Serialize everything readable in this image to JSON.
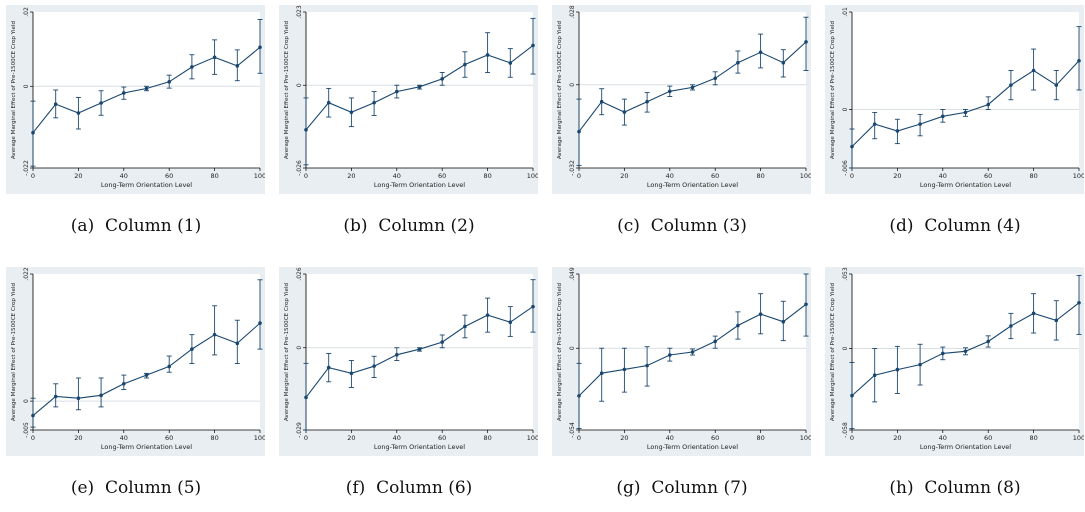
{
  "colors": {
    "series": "#1a476f",
    "panel_bg": "#e8eef1",
    "plot_bg": "#ffffff",
    "zero_line": "#dadfe2"
  },
  "x_ticks": [
    0,
    20,
    40,
    60,
    80,
    100
  ],
  "chart_data": [
    {
      "type": "line",
      "caption_tag": "(a)",
      "caption_text": "Column (1)",
      "xlabel": "Long-Term Orientation Level",
      "ylabel": "Average Marginal Effect of Pre-1500CE Crop Yield",
      "xlim": [
        0,
        100
      ],
      "ylim": [
        -0.022,
        0.02
      ],
      "y_ticks": [
        "-.022",
        "0",
        ".02"
      ],
      "x": [
        0,
        10,
        20,
        30,
        40,
        50,
        60,
        70,
        80,
        90,
        100
      ],
      "y": [
        -0.0125,
        -0.0048,
        -0.0072,
        -0.0045,
        -0.0018,
        -0.0006,
        0.0012,
        0.0052,
        0.0078,
        0.0055,
        0.0105
      ],
      "ci_low": [
        -0.0215,
        -0.0085,
        -0.0115,
        -0.0078,
        -0.0035,
        -0.0012,
        -0.0005,
        0.002,
        0.0032,
        0.0015,
        0.0035
      ],
      "ci_high": [
        -0.004,
        -0.001,
        -0.003,
        -0.0012,
        -0.0002,
        0,
        0.003,
        0.0085,
        0.0125,
        0.0098,
        0.018
      ]
    },
    {
      "type": "line",
      "caption_tag": "(b)",
      "caption_text": "Column (2)",
      "xlabel": "Long-Term Orientation Level",
      "ylabel": "Average Marginal Effect of Pre-1500CE Crop Yield",
      "xlim": [
        0,
        100
      ],
      "ylim": [
        -0.026,
        0.023
      ],
      "y_ticks": [
        "-.026",
        "0",
        ".023"
      ],
      "x": [
        0,
        10,
        20,
        30,
        40,
        50,
        60,
        70,
        80,
        90,
        100
      ],
      "y": [
        -0.014,
        -0.0055,
        -0.0085,
        -0.0055,
        -0.002,
        -0.0005,
        0.002,
        0.0065,
        0.0095,
        0.007,
        0.0125
      ],
      "ci_low": [
        -0.025,
        -0.01,
        -0.013,
        -0.0095,
        -0.004,
        -0.0012,
        0,
        0.0025,
        0.004,
        0.0025,
        0.0035
      ],
      "ci_high": [
        -0.004,
        -0.001,
        -0.004,
        -0.002,
        0,
        0,
        0.004,
        0.0105,
        0.0165,
        0.0115,
        0.021
      ]
    },
    {
      "type": "line",
      "caption_tag": "(c)",
      "caption_text": "Column (3)",
      "xlabel": "Long-Term Orientation Level",
      "ylabel": "Average Marginal Effect of Pre-1500CE Crop Yield",
      "xlim": [
        0,
        100
      ],
      "ylim": [
        -0.032,
        0.028
      ],
      "y_ticks": [
        "-.032",
        "0",
        ".028"
      ],
      "x": [
        0,
        10,
        20,
        30,
        40,
        50,
        60,
        70,
        80,
        90,
        100
      ],
      "y": [
        -0.018,
        -0.0065,
        -0.0105,
        -0.0065,
        -0.0025,
        -0.001,
        0.0025,
        0.0085,
        0.0125,
        0.0085,
        0.0165
      ],
      "ci_low": [
        -0.031,
        -0.0115,
        -0.0155,
        -0.0105,
        -0.0045,
        -0.002,
        0,
        0.0045,
        0.0065,
        0.003,
        0.0055
      ],
      "ci_high": [
        -0.0055,
        -0.0015,
        -0.0055,
        -0.003,
        -0.0005,
        0,
        0.005,
        0.013,
        0.0195,
        0.0135,
        0.026
      ]
    },
    {
      "type": "line",
      "caption_tag": "(d)",
      "caption_text": "Column (4)",
      "xlabel": "Long-Term Orientation Level",
      "ylabel": "Average Marginal Effect of Pre-1500CE Crop Yield",
      "xlim": [
        0,
        100
      ],
      "ylim": [
        -0.006,
        0.01
      ],
      "y_ticks": [
        "-.006",
        "0",
        ".01"
      ],
      "x": [
        0,
        10,
        20,
        30,
        40,
        50,
        60,
        70,
        80,
        90,
        100
      ],
      "y": [
        -0.0038,
        -0.0015,
        -0.0022,
        -0.0015,
        -0.0007,
        -0.0003,
        0.0005,
        0.0025,
        0.004,
        0.0025,
        0.005
      ],
      "ci_low": [
        -0.006,
        -0.003,
        -0.0035,
        -0.0027,
        -0.0013,
        -0.0007,
        0,
        0.001,
        0.002,
        0.001,
        0.002
      ],
      "ci_high": [
        -0.002,
        -0.0003,
        -0.001,
        -0.0005,
        0,
        0,
        0.0013,
        0.004,
        0.0062,
        0.004,
        0.0085
      ]
    },
    {
      "type": "line",
      "caption_tag": "(e)",
      "caption_text": "Column (5)",
      "xlabel": "Long-Term Orientation Level",
      "ylabel": "Average Marginal Effect of Pre-1500CE Crop Yield",
      "xlim": [
        0,
        100
      ],
      "ylim": [
        -0.005,
        0.022
      ],
      "y_ticks": [
        "-.005",
        "0",
        ".022"
      ],
      "x": [
        0,
        10,
        20,
        30,
        40,
        50,
        60,
        70,
        80,
        90,
        100
      ],
      "y": [
        -0.0025,
        0.0008,
        0.0005,
        0.001,
        0.003,
        0.0045,
        0.006,
        0.009,
        0.0115,
        0.01,
        0.0135
      ],
      "ci_low": [
        -0.0045,
        -0.001,
        -0.0015,
        -0.001,
        0.002,
        0.004,
        0.005,
        0.0065,
        0.008,
        0.0065,
        0.009
      ],
      "ci_high": [
        0.0005,
        0.003,
        0.004,
        0.004,
        0.0045,
        0.0048,
        0.0078,
        0.0115,
        0.0165,
        0.014,
        0.021
      ]
    },
    {
      "type": "line",
      "caption_tag": "(f)",
      "caption_text": "Column (6)",
      "xlabel": "Long-Term Orientation Level",
      "ylabel": "Average Marginal Effect of Pre-1500CE Crop Yield",
      "xlim": [
        0,
        100
      ],
      "ylim": [
        -0.029,
        0.026
      ],
      "y_ticks": [
        "-.029",
        "0",
        ".026"
      ],
      "x": [
        0,
        10,
        20,
        30,
        40,
        50,
        60,
        70,
        80,
        90,
        100
      ],
      "y": [
        -0.0175,
        -0.007,
        -0.009,
        -0.0065,
        -0.0025,
        -0.0005,
        0.002,
        0.0075,
        0.0115,
        0.009,
        0.0145
      ],
      "ci_low": [
        -0.029,
        -0.012,
        -0.014,
        -0.0105,
        -0.0045,
        -0.0012,
        0,
        0.0035,
        0.0055,
        0.004,
        0.0055
      ],
      "ci_high": [
        -0.0055,
        -0.002,
        -0.0045,
        -0.003,
        0,
        0,
        0.0045,
        0.0115,
        0.0175,
        0.0145,
        0.024
      ]
    },
    {
      "type": "line",
      "caption_tag": "(g)",
      "caption_text": "Column (7)",
      "xlabel": "Long-Term Orientation Level",
      "ylabel": "Average Marginal Effect of Pre-1500CE Crop Yield",
      "xlim": [
        0,
        100
      ],
      "ylim": [
        -0.054,
        0.049
      ],
      "y_ticks": [
        "-.054",
        "0",
        ".049"
      ],
      "x": [
        0,
        10,
        20,
        30,
        40,
        50,
        60,
        70,
        80,
        90,
        100
      ],
      "y": [
        -0.0315,
        -0.0165,
        -0.014,
        -0.0115,
        -0.0045,
        -0.0025,
        0.0045,
        0.015,
        0.0225,
        0.0175,
        0.029
      ],
      "ci_low": [
        -0.053,
        -0.035,
        -0.029,
        -0.025,
        -0.0085,
        -0.0045,
        0,
        0.006,
        0.0095,
        0.005,
        0.008
      ],
      "ci_high": [
        -0.01,
        0,
        0,
        0.001,
        0,
        -0.0005,
        0.008,
        0.024,
        0.036,
        0.031,
        0.049
      ]
    },
    {
      "type": "line",
      "caption_tag": "(h)",
      "caption_text": "Column (8)",
      "xlabel": "Long-Term Orientation Level",
      "ylabel": "Average Marginal Effect of Pre-1500CE Crop Yield",
      "xlim": [
        0,
        100
      ],
      "ylim": [
        -0.058,
        0.053
      ],
      "y_ticks": [
        "-.058",
        "0",
        ".053"
      ],
      "x": [
        0,
        10,
        20,
        30,
        40,
        50,
        60,
        70,
        80,
        90,
        100
      ],
      "y": [
        -0.0335,
        -0.019,
        -0.015,
        -0.0115,
        -0.0035,
        -0.002,
        0.005,
        0.016,
        0.025,
        0.02,
        0.0325
      ],
      "ci_low": [
        -0.057,
        -0.038,
        -0.032,
        -0.026,
        -0.008,
        -0.0045,
        0.001,
        0.007,
        0.011,
        0.006,
        0.01
      ],
      "ci_high": [
        -0.01,
        0,
        0.0015,
        0.003,
        0.001,
        0.0005,
        0.009,
        0.025,
        0.039,
        0.034,
        0.052
      ]
    }
  ]
}
